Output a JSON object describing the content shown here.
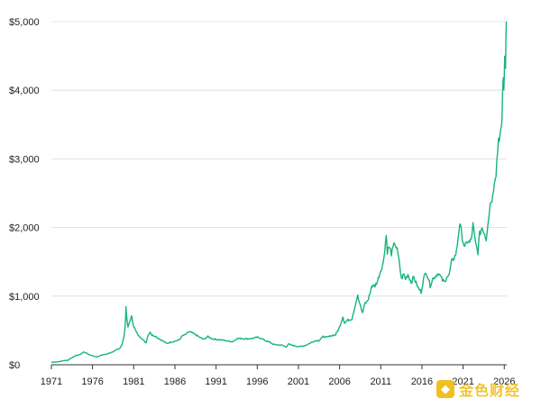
{
  "chart_data": {
    "type": "line",
    "title": "",
    "xlabel": "",
    "ylabel": "",
    "xlim": [
      1971,
      2026.3
    ],
    "ylim": [
      0,
      5000
    ],
    "grid": "horizontal",
    "x_ticks": [
      "1971",
      "1976",
      "1981",
      "1986",
      "1991",
      "1996",
      "2001",
      "2006",
      "2011",
      "2016",
      "2021",
      "2026"
    ],
    "y_ticks": [
      "$0",
      "$1,000",
      "$2,000",
      "$3,000",
      "$4,000",
      "$5,000"
    ],
    "line_color": "#16b57a",
    "series": [
      {
        "values": [
          [
            1971.0,
            37
          ],
          [
            1971.5,
            40
          ],
          [
            1972.0,
            46
          ],
          [
            1972.5,
            62
          ],
          [
            1973.0,
            65
          ],
          [
            1973.3,
            90
          ],
          [
            1973.6,
            110
          ],
          [
            1974.0,
            135
          ],
          [
            1974.5,
            150
          ],
          [
            1974.9,
            185
          ],
          [
            1975.2,
            175
          ],
          [
            1975.6,
            145
          ],
          [
            1976.0,
            130
          ],
          [
            1976.5,
            115
          ],
          [
            1976.8,
            125
          ],
          [
            1977.2,
            145
          ],
          [
            1977.6,
            150
          ],
          [
            1978.0,
            170
          ],
          [
            1978.5,
            185
          ],
          [
            1978.9,
            220
          ],
          [
            1979.3,
            240
          ],
          [
            1979.6,
            300
          ],
          [
            1979.85,
            430
          ],
          [
            1980.0,
            650
          ],
          [
            1980.06,
            850
          ],
          [
            1980.15,
            680
          ],
          [
            1980.3,
            540
          ],
          [
            1980.5,
            630
          ],
          [
            1980.75,
            700
          ],
          [
            1981.0,
            560
          ],
          [
            1981.3,
            480
          ],
          [
            1981.6,
            420
          ],
          [
            1981.9,
            400
          ],
          [
            1982.2,
            350
          ],
          [
            1982.5,
            320
          ],
          [
            1982.7,
            420
          ],
          [
            1983.0,
            480
          ],
          [
            1983.2,
            430
          ],
          [
            1983.6,
            420
          ],
          [
            1984.0,
            385
          ],
          [
            1984.5,
            350
          ],
          [
            1985.0,
            310
          ],
          [
            1985.5,
            330
          ],
          [
            1986.0,
            345
          ],
          [
            1986.5,
            360
          ],
          [
            1986.9,
            420
          ],
          [
            1987.3,
            440
          ],
          [
            1987.7,
            480
          ],
          [
            1988.0,
            470
          ],
          [
            1988.5,
            440
          ],
          [
            1989.0,
            400
          ],
          [
            1989.5,
            370
          ],
          [
            1990.0,
            410
          ],
          [
            1990.5,
            380
          ],
          [
            1991.0,
            370
          ],
          [
            1991.5,
            365
          ],
          [
            1992.0,
            355
          ],
          [
            1992.5,
            345
          ],
          [
            1993.0,
            335
          ],
          [
            1993.5,
            380
          ],
          [
            1994.0,
            385
          ],
          [
            1994.5,
            380
          ],
          [
            1995.0,
            380
          ],
          [
            1995.5,
            385
          ],
          [
            1996.0,
            400
          ],
          [
            1996.5,
            385
          ],
          [
            1997.0,
            350
          ],
          [
            1997.5,
            330
          ],
          [
            1998.0,
            295
          ],
          [
            1998.5,
            290
          ],
          [
            1999.0,
            285
          ],
          [
            1999.5,
            260
          ],
          [
            1999.8,
            300
          ],
          [
            2000.2,
            285
          ],
          [
            2000.6,
            275
          ],
          [
            2001.0,
            265
          ],
          [
            2001.5,
            270
          ],
          [
            2002.0,
            290
          ],
          [
            2002.5,
            320
          ],
          [
            2003.0,
            350
          ],
          [
            2003.5,
            355
          ],
          [
            2004.0,
            410
          ],
          [
            2004.5,
            400
          ],
          [
            2005.0,
            425
          ],
          [
            2005.5,
            435
          ],
          [
            2006.0,
            550
          ],
          [
            2006.4,
            700
          ],
          [
            2006.6,
            610
          ],
          [
            2007.0,
            650
          ],
          [
            2007.5,
            670
          ],
          [
            2008.0,
            920
          ],
          [
            2008.2,
            1000
          ],
          [
            2008.5,
            860
          ],
          [
            2008.8,
            750
          ],
          [
            2009.0,
            880
          ],
          [
            2009.5,
            950
          ],
          [
            2009.9,
            1150
          ],
          [
            2010.3,
            1150
          ],
          [
            2010.6,
            1220
          ],
          [
            2011.0,
            1380
          ],
          [
            2011.3,
            1480
          ],
          [
            2011.67,
            1890
          ],
          [
            2011.8,
            1650
          ],
          [
            2012.0,
            1720
          ],
          [
            2012.3,
            1620
          ],
          [
            2012.7,
            1780
          ],
          [
            2013.0,
            1670
          ],
          [
            2013.3,
            1450
          ],
          [
            2013.5,
            1250
          ],
          [
            2013.8,
            1320
          ],
          [
            2014.0,
            1250
          ],
          [
            2014.3,
            1320
          ],
          [
            2014.7,
            1200
          ],
          [
            2015.0,
            1280
          ],
          [
            2015.5,
            1130
          ],
          [
            2015.9,
            1060
          ],
          [
            2016.2,
            1250
          ],
          [
            2016.5,
            1360
          ],
          [
            2016.8,
            1250
          ],
          [
            2017.0,
            1150
          ],
          [
            2017.3,
            1250
          ],
          [
            2017.7,
            1300
          ],
          [
            2018.0,
            1340
          ],
          [
            2018.5,
            1230
          ],
          [
            2018.8,
            1200
          ],
          [
            2019.0,
            1290
          ],
          [
            2019.3,
            1300
          ],
          [
            2019.6,
            1500
          ],
          [
            2020.0,
            1580
          ],
          [
            2020.2,
            1650
          ],
          [
            2020.6,
            2070
          ],
          [
            2020.9,
            1850
          ],
          [
            2021.2,
            1700
          ],
          [
            2021.5,
            1800
          ],
          [
            2021.8,
            1780
          ],
          [
            2022.0,
            1830
          ],
          [
            2022.2,
            2040
          ],
          [
            2022.5,
            1770
          ],
          [
            2022.8,
            1640
          ],
          [
            2023.0,
            1900
          ],
          [
            2023.3,
            2000
          ],
          [
            2023.6,
            1920
          ],
          [
            2023.8,
            1830
          ],
          [
            2024.0,
            2060
          ],
          [
            2024.3,
            2350
          ],
          [
            2024.6,
            2450
          ],
          [
            2024.8,
            2700
          ],
          [
            2025.0,
            2800
          ],
          [
            2025.3,
            3300
          ],
          [
            2025.5,
            3350
          ],
          [
            2025.65,
            3400
          ],
          [
            2025.75,
            3700
          ],
          [
            2025.85,
            4200
          ],
          [
            2025.95,
            4000
          ],
          [
            2026.05,
            4500
          ],
          [
            2026.15,
            4400
          ],
          [
            2026.25,
            5000
          ]
        ]
      }
    ]
  },
  "watermark": {
    "icon": "binance-logo-icon",
    "text": "金色财经"
  }
}
